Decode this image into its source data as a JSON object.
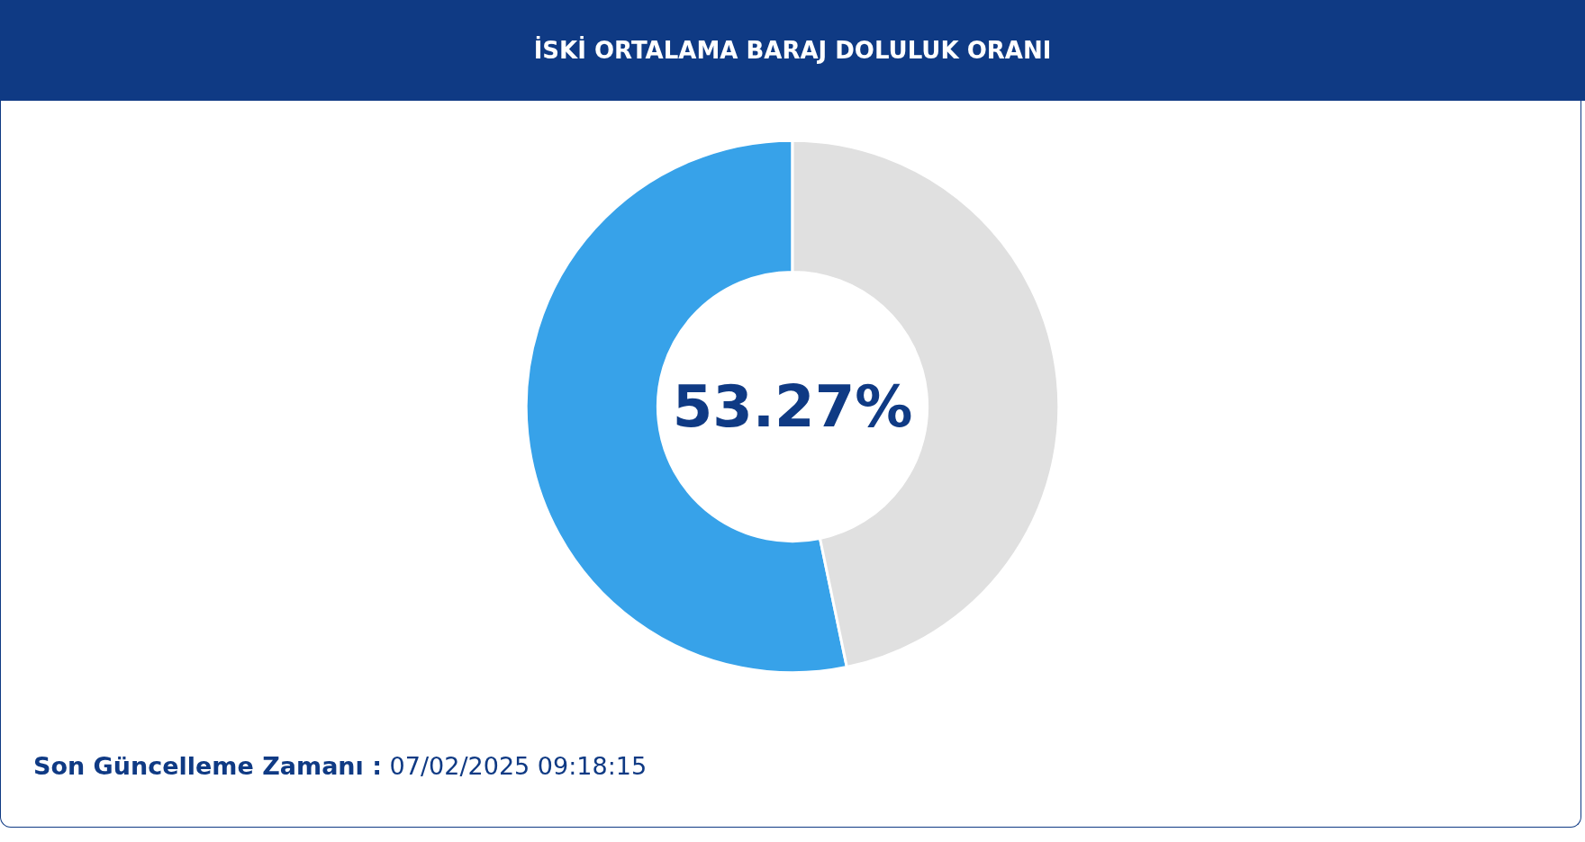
{
  "chart_data": {
    "type": "donut",
    "title": "İSKİ ORTALAMA BARAJ DOLULUK ORANI",
    "categories": [
      null,
      null
    ],
    "values": [
      53.27,
      46.73
    ],
    "colors": [
      "#37a2e9",
      "#e0e0e0"
    ],
    "value_labels": [
      "53.27%",
      null
    ],
    "annotations": [
      "Son Güncelleme Zamanı : 07/02/2025 09:18:15"
    ]
  }
}
